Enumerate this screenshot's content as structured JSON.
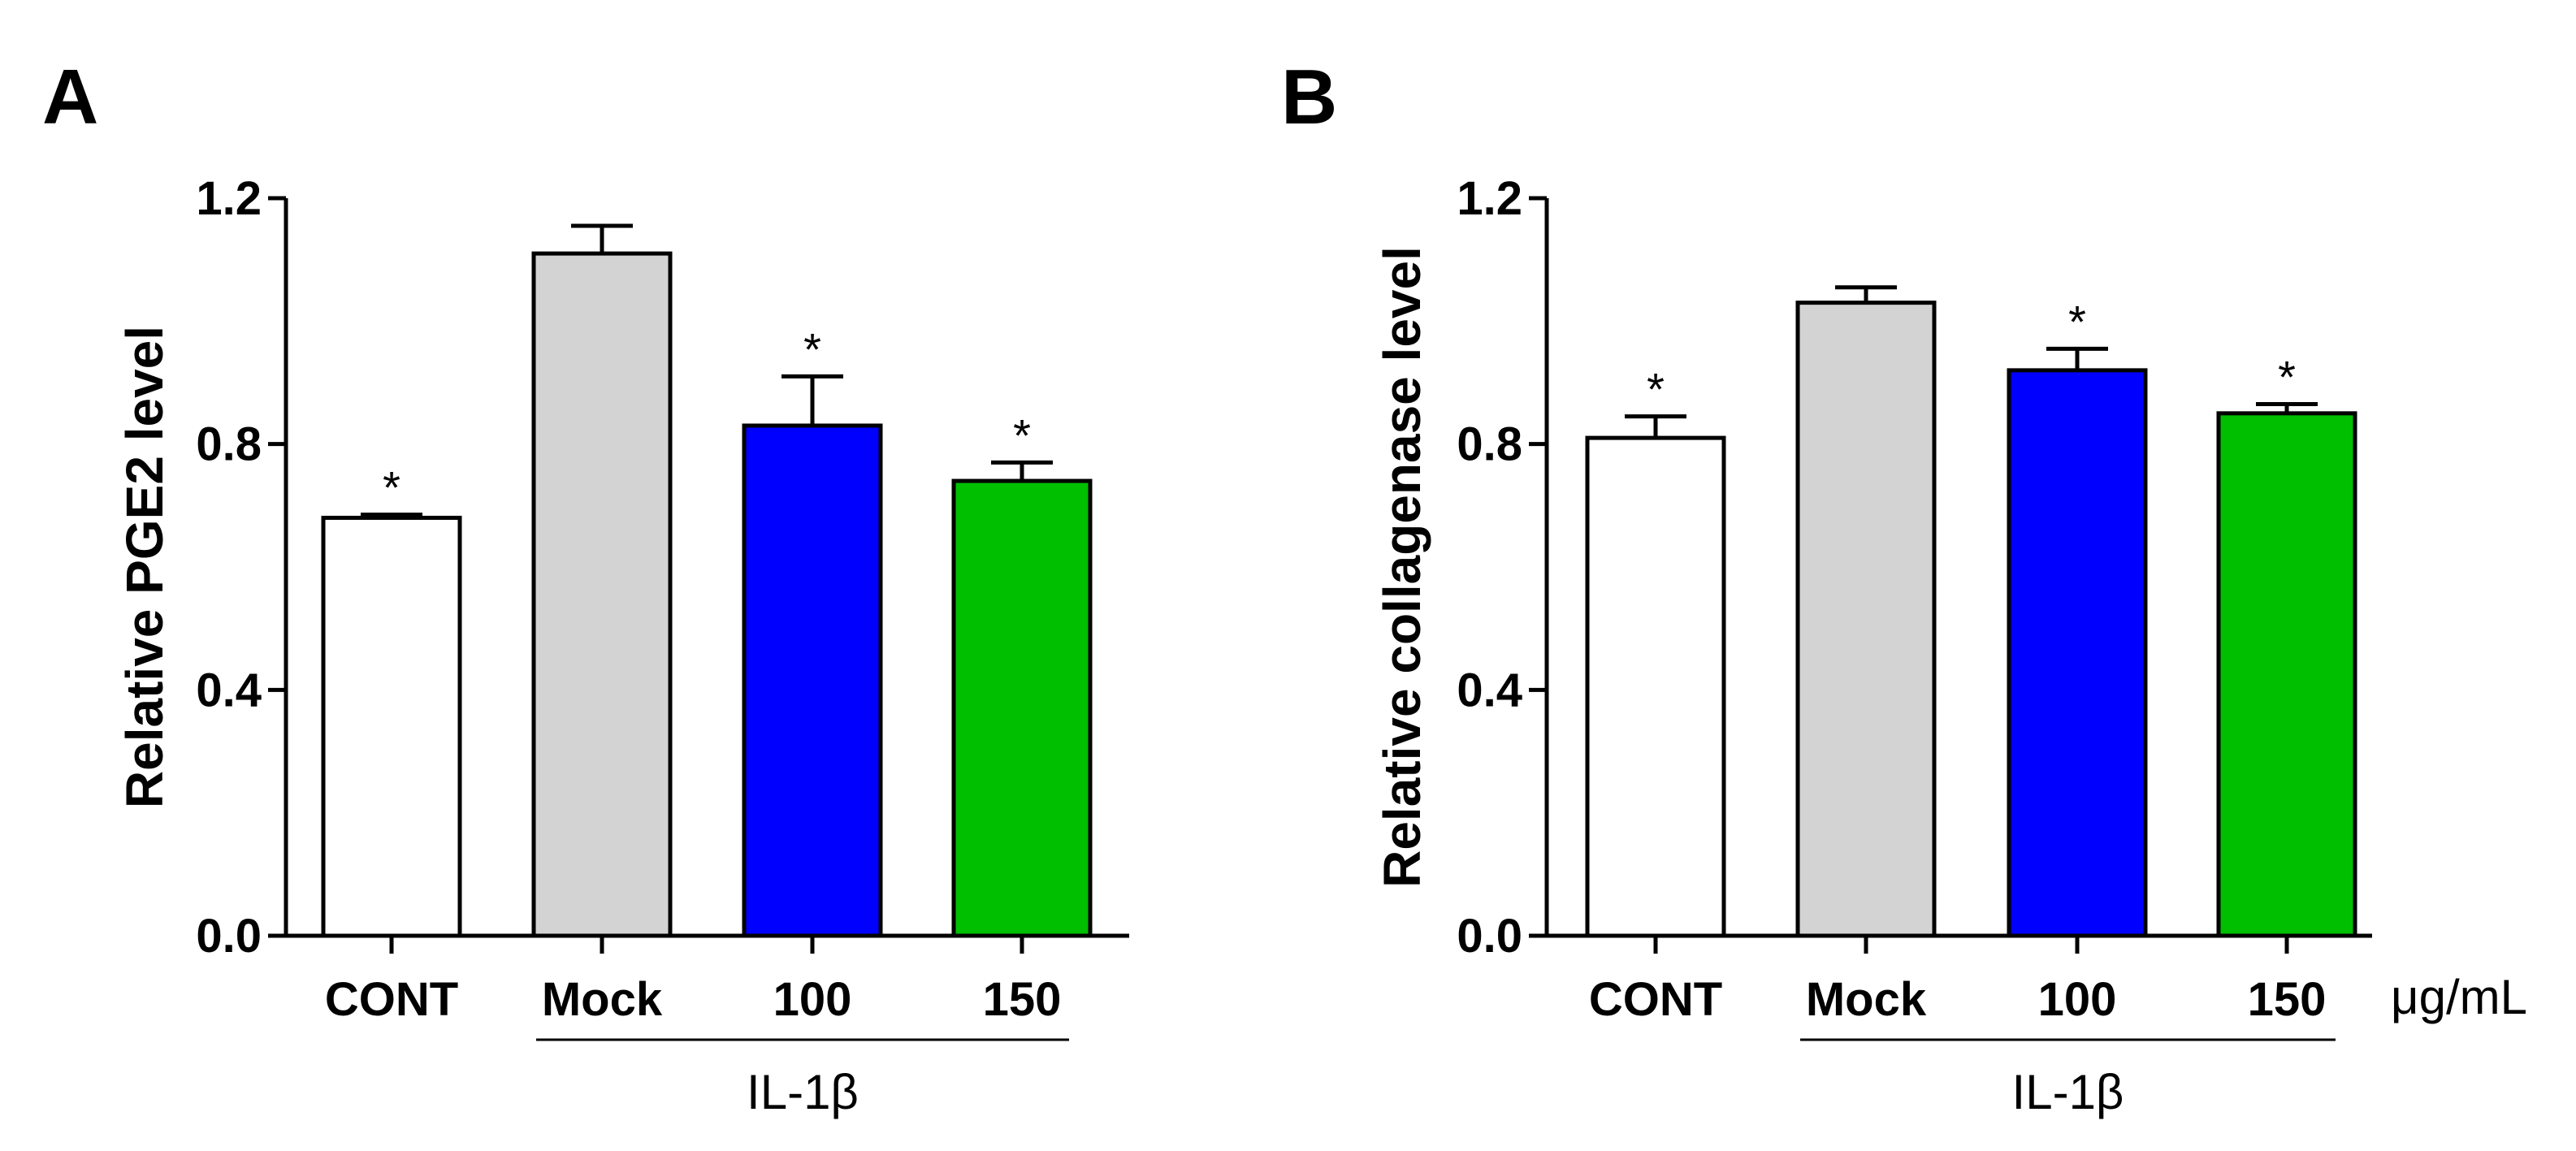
{
  "chart_data": [
    {
      "type": "bar",
      "panel": "A",
      "title": "",
      "categories": [
        "CONT",
        "Mock",
        "100",
        "150"
      ],
      "values": [
        0.68,
        1.11,
        0.83,
        0.74
      ],
      "errors": [
        0.005,
        0.045,
        0.08,
        0.03
      ],
      "significance": [
        "*",
        "",
        "*",
        "*"
      ],
      "colors": [
        "#ffffff",
        "#d3d3d3",
        "#0000ff",
        "#00bf00"
      ],
      "ylabel": "Relative PGE2  level",
      "xlabel": "",
      "ylim": [
        0,
        1.2
      ],
      "yticks": [
        "0.0",
        "0.4",
        "0.8",
        "1.2"
      ],
      "group_label": "IL-1β",
      "unit_label": ""
    },
    {
      "type": "bar",
      "panel": "B",
      "title": "",
      "categories": [
        "CONT",
        "Mock",
        "100",
        "150"
      ],
      "values": [
        0.81,
        1.03,
        0.92,
        0.85
      ],
      "errors": [
        0.035,
        0.025,
        0.035,
        0.015
      ],
      "significance": [
        "*",
        "",
        "*",
        "*"
      ],
      "colors": [
        "#ffffff",
        "#d3d3d3",
        "#0000ff",
        "#00bf00"
      ],
      "ylabel": "Relative collagenase level",
      "xlabel": "",
      "ylim": [
        0,
        1.2
      ],
      "yticks": [
        "0.0",
        "0.4",
        "0.8",
        "1.2"
      ],
      "group_label": "IL-1β",
      "unit_label": "μg/mL"
    }
  ]
}
